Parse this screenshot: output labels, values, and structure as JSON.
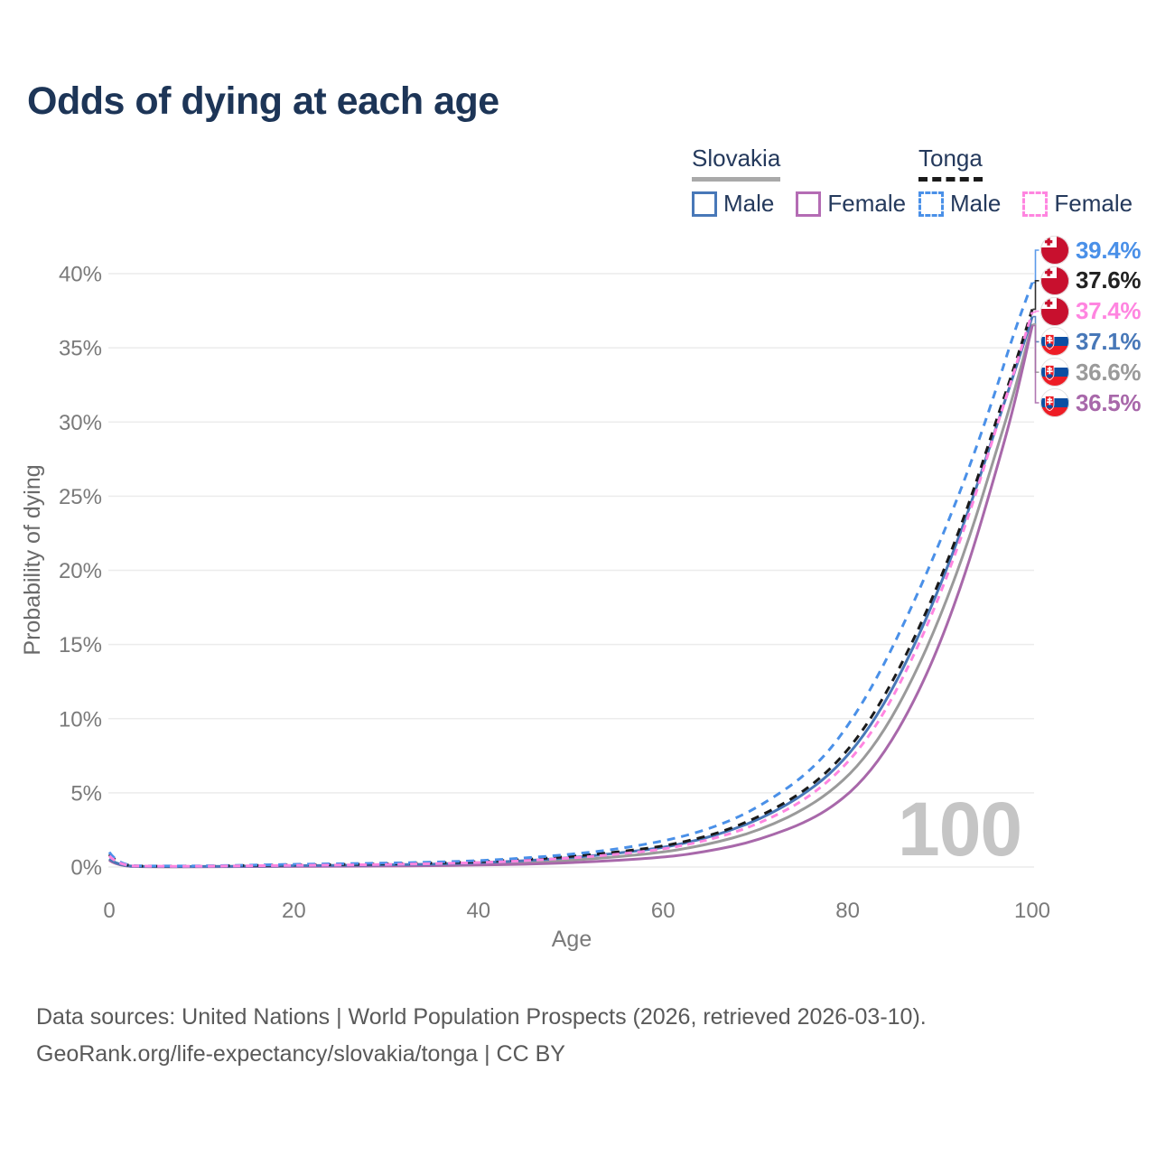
{
  "title": "Odds of dying at each age",
  "watermark": "100",
  "sources": {
    "line1": "Data sources: United Nations | World Population Prospects (2026, retrieved 2026-03-10).",
    "line2": "GeoRank.org/life-expectancy/slovakia/tonga | CC BY"
  },
  "legend": {
    "groups": [
      {
        "label": "Slovakia",
        "line_style": "solid",
        "line_color": "#a9a9a9",
        "items": [
          {
            "label": "Male",
            "color": "#4878b8",
            "dashed": false
          },
          {
            "label": "Female",
            "color": "#b46cb4",
            "dashed": false
          }
        ]
      },
      {
        "label": "Tonga",
        "line_style": "dashed",
        "line_color": "#1a1a1a",
        "items": [
          {
            "label": "Male",
            "color": "#4a90e8",
            "dashed": true
          },
          {
            "label": "Female",
            "color": "#ff85e0",
            "dashed": true
          }
        ]
      }
    ]
  },
  "chart_data": {
    "type": "line",
    "title": "Odds of dying at each age",
    "xlabel": "Age",
    "ylabel": "Probability of dying",
    "xlim": [
      0,
      100
    ],
    "ylim": [
      0,
      42
    ],
    "grid": "horizontal",
    "xticks": [
      0,
      20,
      40,
      60,
      80,
      100
    ],
    "yticks": [
      0,
      5,
      10,
      15,
      20,
      25,
      30,
      35,
      40
    ],
    "ytick_labels": [
      "0%",
      "5%",
      "10%",
      "15%",
      "20%",
      "25%",
      "30%",
      "35%",
      "40%"
    ],
    "x": [
      0,
      1,
      5,
      10,
      15,
      20,
      25,
      30,
      35,
      40,
      45,
      50,
      55,
      60,
      63,
      66,
      69,
      72,
      75,
      78,
      81,
      84,
      87,
      90,
      93,
      96,
      98,
      100
    ],
    "series": [
      {
        "id": "tonga-male",
        "country": "Tonga",
        "sex": "Male",
        "flag": "tonga",
        "color": "#4a90e8",
        "dash": "9 7",
        "width": 3,
        "end_label": "39.4%",
        "end_value": 39.4,
        "values": [
          1.0,
          0.1,
          0.06,
          0.07,
          0.12,
          0.18,
          0.22,
          0.26,
          0.32,
          0.42,
          0.6,
          0.85,
          1.2,
          1.75,
          2.2,
          2.8,
          3.6,
          4.7,
          6.0,
          7.8,
          10.4,
          13.7,
          17.6,
          21.9,
          26.6,
          32.0,
          36.0,
          39.4
        ]
      },
      {
        "id": "tonga-total",
        "country": "Tonga",
        "sex": "All",
        "flag": "tonga",
        "color": "#1a1a1a",
        "dash": "9 7",
        "width": 3,
        "end_label": "37.6%",
        "end_value": 37.6,
        "values": [
          0.85,
          0.09,
          0.05,
          0.06,
          0.1,
          0.14,
          0.17,
          0.21,
          0.26,
          0.35,
          0.5,
          0.7,
          1.0,
          1.4,
          1.8,
          2.3,
          3.0,
          3.9,
          5.0,
          6.5,
          8.6,
          11.5,
          15.1,
          19.3,
          24.2,
          29.9,
          33.6,
          37.6
        ]
      },
      {
        "id": "tonga-female",
        "country": "Tonga",
        "sex": "Female",
        "flag": "tonga",
        "color": "#ff85e0",
        "dash": "8 6",
        "width": 3,
        "end_label": "37.4%",
        "end_value": 37.4,
        "values": [
          0.75,
          0.08,
          0.05,
          0.05,
          0.08,
          0.11,
          0.13,
          0.17,
          0.22,
          0.29,
          0.42,
          0.6,
          0.85,
          1.2,
          1.55,
          2.0,
          2.6,
          3.4,
          4.4,
          5.8,
          7.7,
          10.4,
          14.0,
          18.3,
          23.4,
          29.4,
          33.3,
          37.4
        ]
      },
      {
        "id": "slovakia-male",
        "country": "Slovakia",
        "sex": "Male",
        "flag": "slovakia",
        "color": "#4878b8",
        "dash": null,
        "width": 3,
        "end_label": "37.1%",
        "end_value": 37.1,
        "values": [
          0.55,
          0.05,
          0.03,
          0.03,
          0.06,
          0.09,
          0.11,
          0.14,
          0.19,
          0.28,
          0.42,
          0.62,
          0.92,
          1.3,
          1.7,
          2.2,
          2.85,
          3.7,
          4.8,
          6.2,
          8.2,
          11.0,
          14.6,
          18.9,
          23.8,
          29.5,
          33.2,
          37.1
        ]
      },
      {
        "id": "slovakia-total",
        "country": "Slovakia",
        "sex": "All",
        "flag": "slovakia",
        "color": "#9a9a9a",
        "dash": null,
        "width": 3,
        "end_label": "36.6%",
        "end_value": 36.6,
        "values": [
          0.5,
          0.04,
          0.02,
          0.02,
          0.04,
          0.06,
          0.08,
          0.1,
          0.14,
          0.2,
          0.3,
          0.45,
          0.68,
          1.0,
          1.3,
          1.7,
          2.2,
          2.9,
          3.8,
          5.0,
          6.7,
          9.2,
          12.6,
          16.8,
          21.8,
          27.8,
          31.9,
          36.6
        ]
      },
      {
        "id": "slovakia-female",
        "country": "Slovakia",
        "sex": "Female",
        "flag": "slovakia",
        "color": "#a868aa",
        "dash": null,
        "width": 3,
        "end_label": "36.5%",
        "end_value": 36.5,
        "values": [
          0.45,
          0.04,
          0.02,
          0.02,
          0.03,
          0.04,
          0.05,
          0.07,
          0.09,
          0.13,
          0.19,
          0.29,
          0.44,
          0.66,
          0.88,
          1.2,
          1.6,
          2.2,
          2.9,
          3.9,
          5.4,
          7.7,
          10.9,
          15.0,
          20.2,
          26.5,
          31.0,
          36.5
        ]
      }
    ]
  }
}
